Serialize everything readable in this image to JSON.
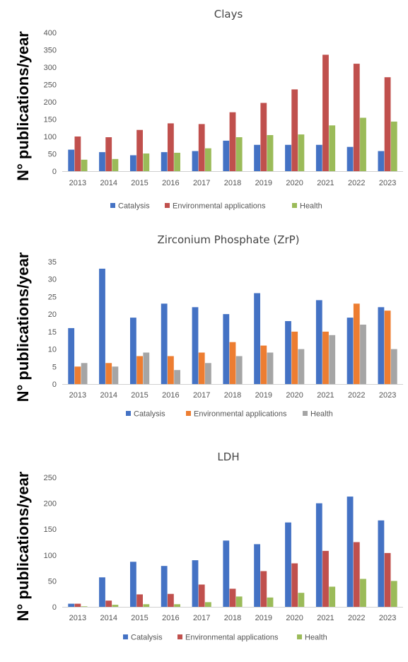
{
  "chart_data": [
    {
      "type": "bar",
      "title": "Clays",
      "ylabel": "N° publications/year",
      "xlabel": "",
      "ylim": [
        0,
        400
      ],
      "yticks": [
        0,
        50,
        100,
        150,
        200,
        250,
        300,
        350,
        400
      ],
      "grid": false,
      "legend_position": "bottom",
      "categories": [
        "2013",
        "2014",
        "2015",
        "2016",
        "2017",
        "2018",
        "2019",
        "2020",
        "2021",
        "2022",
        "2023"
      ],
      "series": [
        {
          "name": "Catalysis",
          "color": "#4472C4",
          "values": [
            62,
            55,
            46,
            55,
            58,
            88,
            76,
            76,
            76,
            70,
            58
          ]
        },
        {
          "name": "Environmental applications",
          "color": "#C0504D",
          "values": [
            100,
            98,
            119,
            138,
            136,
            170,
            197,
            236,
            336,
            310,
            271
          ]
        },
        {
          "name": "Health",
          "color": "#9BBB59",
          "values": [
            33,
            35,
            51,
            53,
            66,
            98,
            104,
            106,
            132,
            154,
            143
          ]
        }
      ]
    },
    {
      "type": "bar",
      "title": "Zirconium Phosphate (ZrP)",
      "ylabel": "N° publications/year",
      "xlabel": "",
      "ylim": [
        0,
        35
      ],
      "yticks": [
        0,
        5,
        10,
        15,
        20,
        25,
        30,
        35
      ],
      "grid": false,
      "legend_position": "bottom",
      "categories": [
        "2013",
        "2014",
        "2015",
        "2016",
        "2017",
        "2018",
        "2019",
        "2020",
        "2021",
        "2022",
        "2023"
      ],
      "series": [
        {
          "name": "Catalysis",
          "color": "#4472C4",
          "values": [
            16,
            33,
            19,
            23,
            22,
            20,
            26,
            18,
            24,
            19,
            22
          ]
        },
        {
          "name": "Environmental applications",
          "color": "#ED7D31",
          "values": [
            5,
            6,
            8,
            8,
            9,
            12,
            11,
            15,
            15,
            23,
            21
          ]
        },
        {
          "name": "Health",
          "color": "#A5A5A5",
          "values": [
            6,
            5,
            9,
            4,
            6,
            8,
            9,
            10,
            14,
            17,
            10
          ]
        }
      ]
    },
    {
      "type": "bar",
      "title": "LDH",
      "ylabel": "N° publications/year",
      "xlabel": "",
      "ylim": [
        0,
        250
      ],
      "yticks": [
        0,
        50,
        100,
        150,
        200,
        250
      ],
      "grid": false,
      "legend_position": "bottom",
      "categories": [
        "2013",
        "2014",
        "2015",
        "2016",
        "2017",
        "2018",
        "2019",
        "2020",
        "2021",
        "2022",
        "2023"
      ],
      "series": [
        {
          "name": "Catalysis",
          "color": "#4472C4",
          "values": [
            6,
            57,
            87,
            79,
            90,
            128,
            121,
            163,
            200,
            213,
            167
          ]
        },
        {
          "name": "Environmental applications",
          "color": "#C0504D",
          "values": [
            6,
            12,
            24,
            25,
            43,
            35,
            69,
            84,
            108,
            125,
            104
          ]
        },
        {
          "name": "Health",
          "color": "#9BBB59",
          "values": [
            1,
            4,
            5,
            5,
            9,
            20,
            18,
            27,
            39,
            54,
            50
          ]
        }
      ]
    }
  ]
}
